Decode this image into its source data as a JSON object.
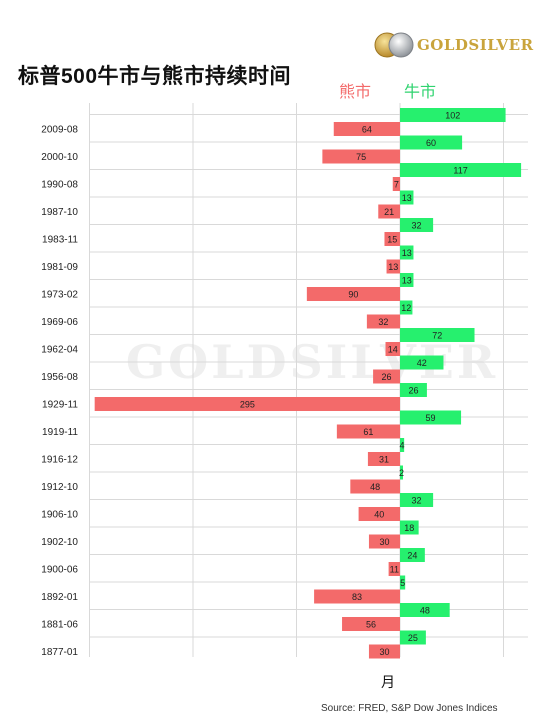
{
  "header": {
    "title": "标普500牛市与熊市持续时间",
    "legend_bear": "熊市",
    "legend_bull": "牛市",
    "brand": "GOLDSILVER",
    "watermark": "GOLDSILVER"
  },
  "footer": {
    "x_unit": "月",
    "source": "Source: FRED,  S&P Dow Jones Indices"
  },
  "chart_data": {
    "type": "bar",
    "orientation": "horizontal-diverging",
    "categories": [
      "2009-08",
      "2000-10",
      "1990-08",
      "1987-10",
      "1983-11",
      "1981-09",
      "1973-02",
      "1969-06",
      "1962-04",
      "1956-08",
      "1929-11",
      "1919-11",
      "1916-12",
      "1912-10",
      "1906-10",
      "1902-10",
      "1900-06",
      "1892-01",
      "1881-06",
      "1877-01"
    ],
    "series": [
      {
        "name": "熊市",
        "color": "#f36a6a",
        "values": [
          64,
          75,
          7,
          21,
          15,
          13,
          90,
          32,
          14,
          26,
          295,
          61,
          31,
          48,
          40,
          30,
          11,
          83,
          56,
          30
        ]
      },
      {
        "name": "牛市",
        "color": "#26f06e",
        "values": [
          102,
          60,
          117,
          13,
          32,
          13,
          13,
          12,
          72,
          42,
          26,
          59,
          4,
          2,
          32,
          18,
          24,
          5,
          48,
          25
        ]
      }
    ],
    "xlabel": "月",
    "xlim": [
      -300,
      120
    ],
    "grid": true
  }
}
